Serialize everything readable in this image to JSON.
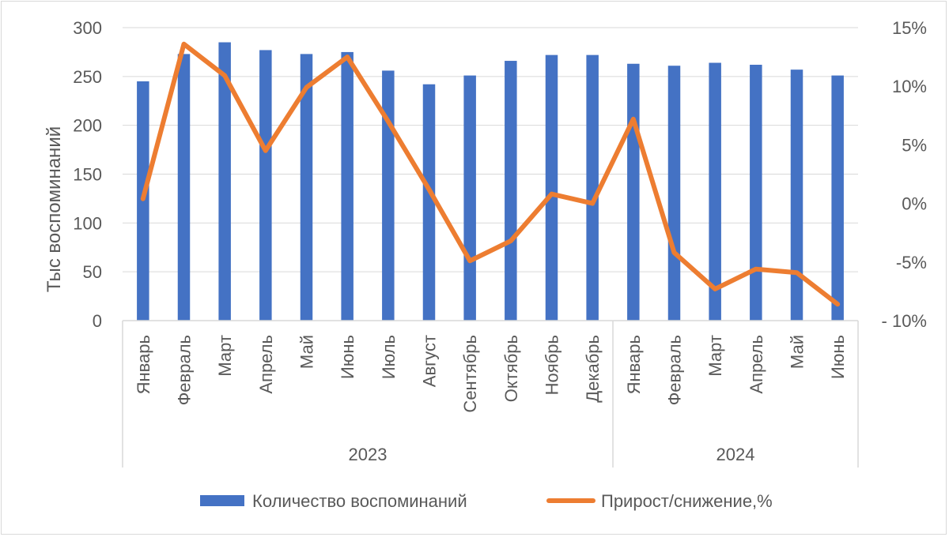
{
  "chart_data": {
    "type": "bar+line",
    "title": "",
    "ylabel": "Тыс воспоминаний",
    "ylabel_right": "",
    "ylim": [
      0,
      300
    ],
    "yticks": [
      "0",
      "50",
      "100",
      "150",
      "200",
      "250",
      "300"
    ],
    "ylim_right": [
      -10,
      15
    ],
    "yticks_right": [
      "- 10%",
      "-5%",
      "0%",
      "5%",
      "10%",
      "15%"
    ],
    "categories": [
      "Январь",
      "Февраль",
      "Март",
      "Апрель",
      "Май",
      "Июнь",
      "Июль",
      "Август",
      "Сентябрь",
      "Октябрь",
      "Ноябрь",
      "Декабрь",
      "Январь",
      "Февраль",
      "Март",
      "Апрель",
      "Май",
      "Июнь"
    ],
    "groups": [
      {
        "label": "2023",
        "count": 12
      },
      {
        "label": "2024",
        "count": 6
      }
    ],
    "series": [
      {
        "name": "Количество воспоминаний",
        "type": "bar",
        "axis": "left",
        "color": "#4472c4",
        "values": [
          245,
          273,
          285,
          277,
          273,
          275,
          256,
          242,
          251,
          266,
          272,
          272,
          263,
          261,
          264,
          262,
          257,
          251
        ]
      },
      {
        "name": "Прирост/снижение,%",
        "type": "line",
        "axis": "right",
        "color": "#ed7d31",
        "values": [
          0.4,
          13.6,
          10.9,
          4.5,
          9.9,
          12.5,
          7.0,
          1.2,
          -4.9,
          -3.2,
          0.8,
          0.0,
          7.2,
          -4.2,
          -7.3,
          -5.6,
          -5.9,
          -8.6
        ]
      }
    ],
    "grid": true,
    "legend_position": "bottom"
  }
}
